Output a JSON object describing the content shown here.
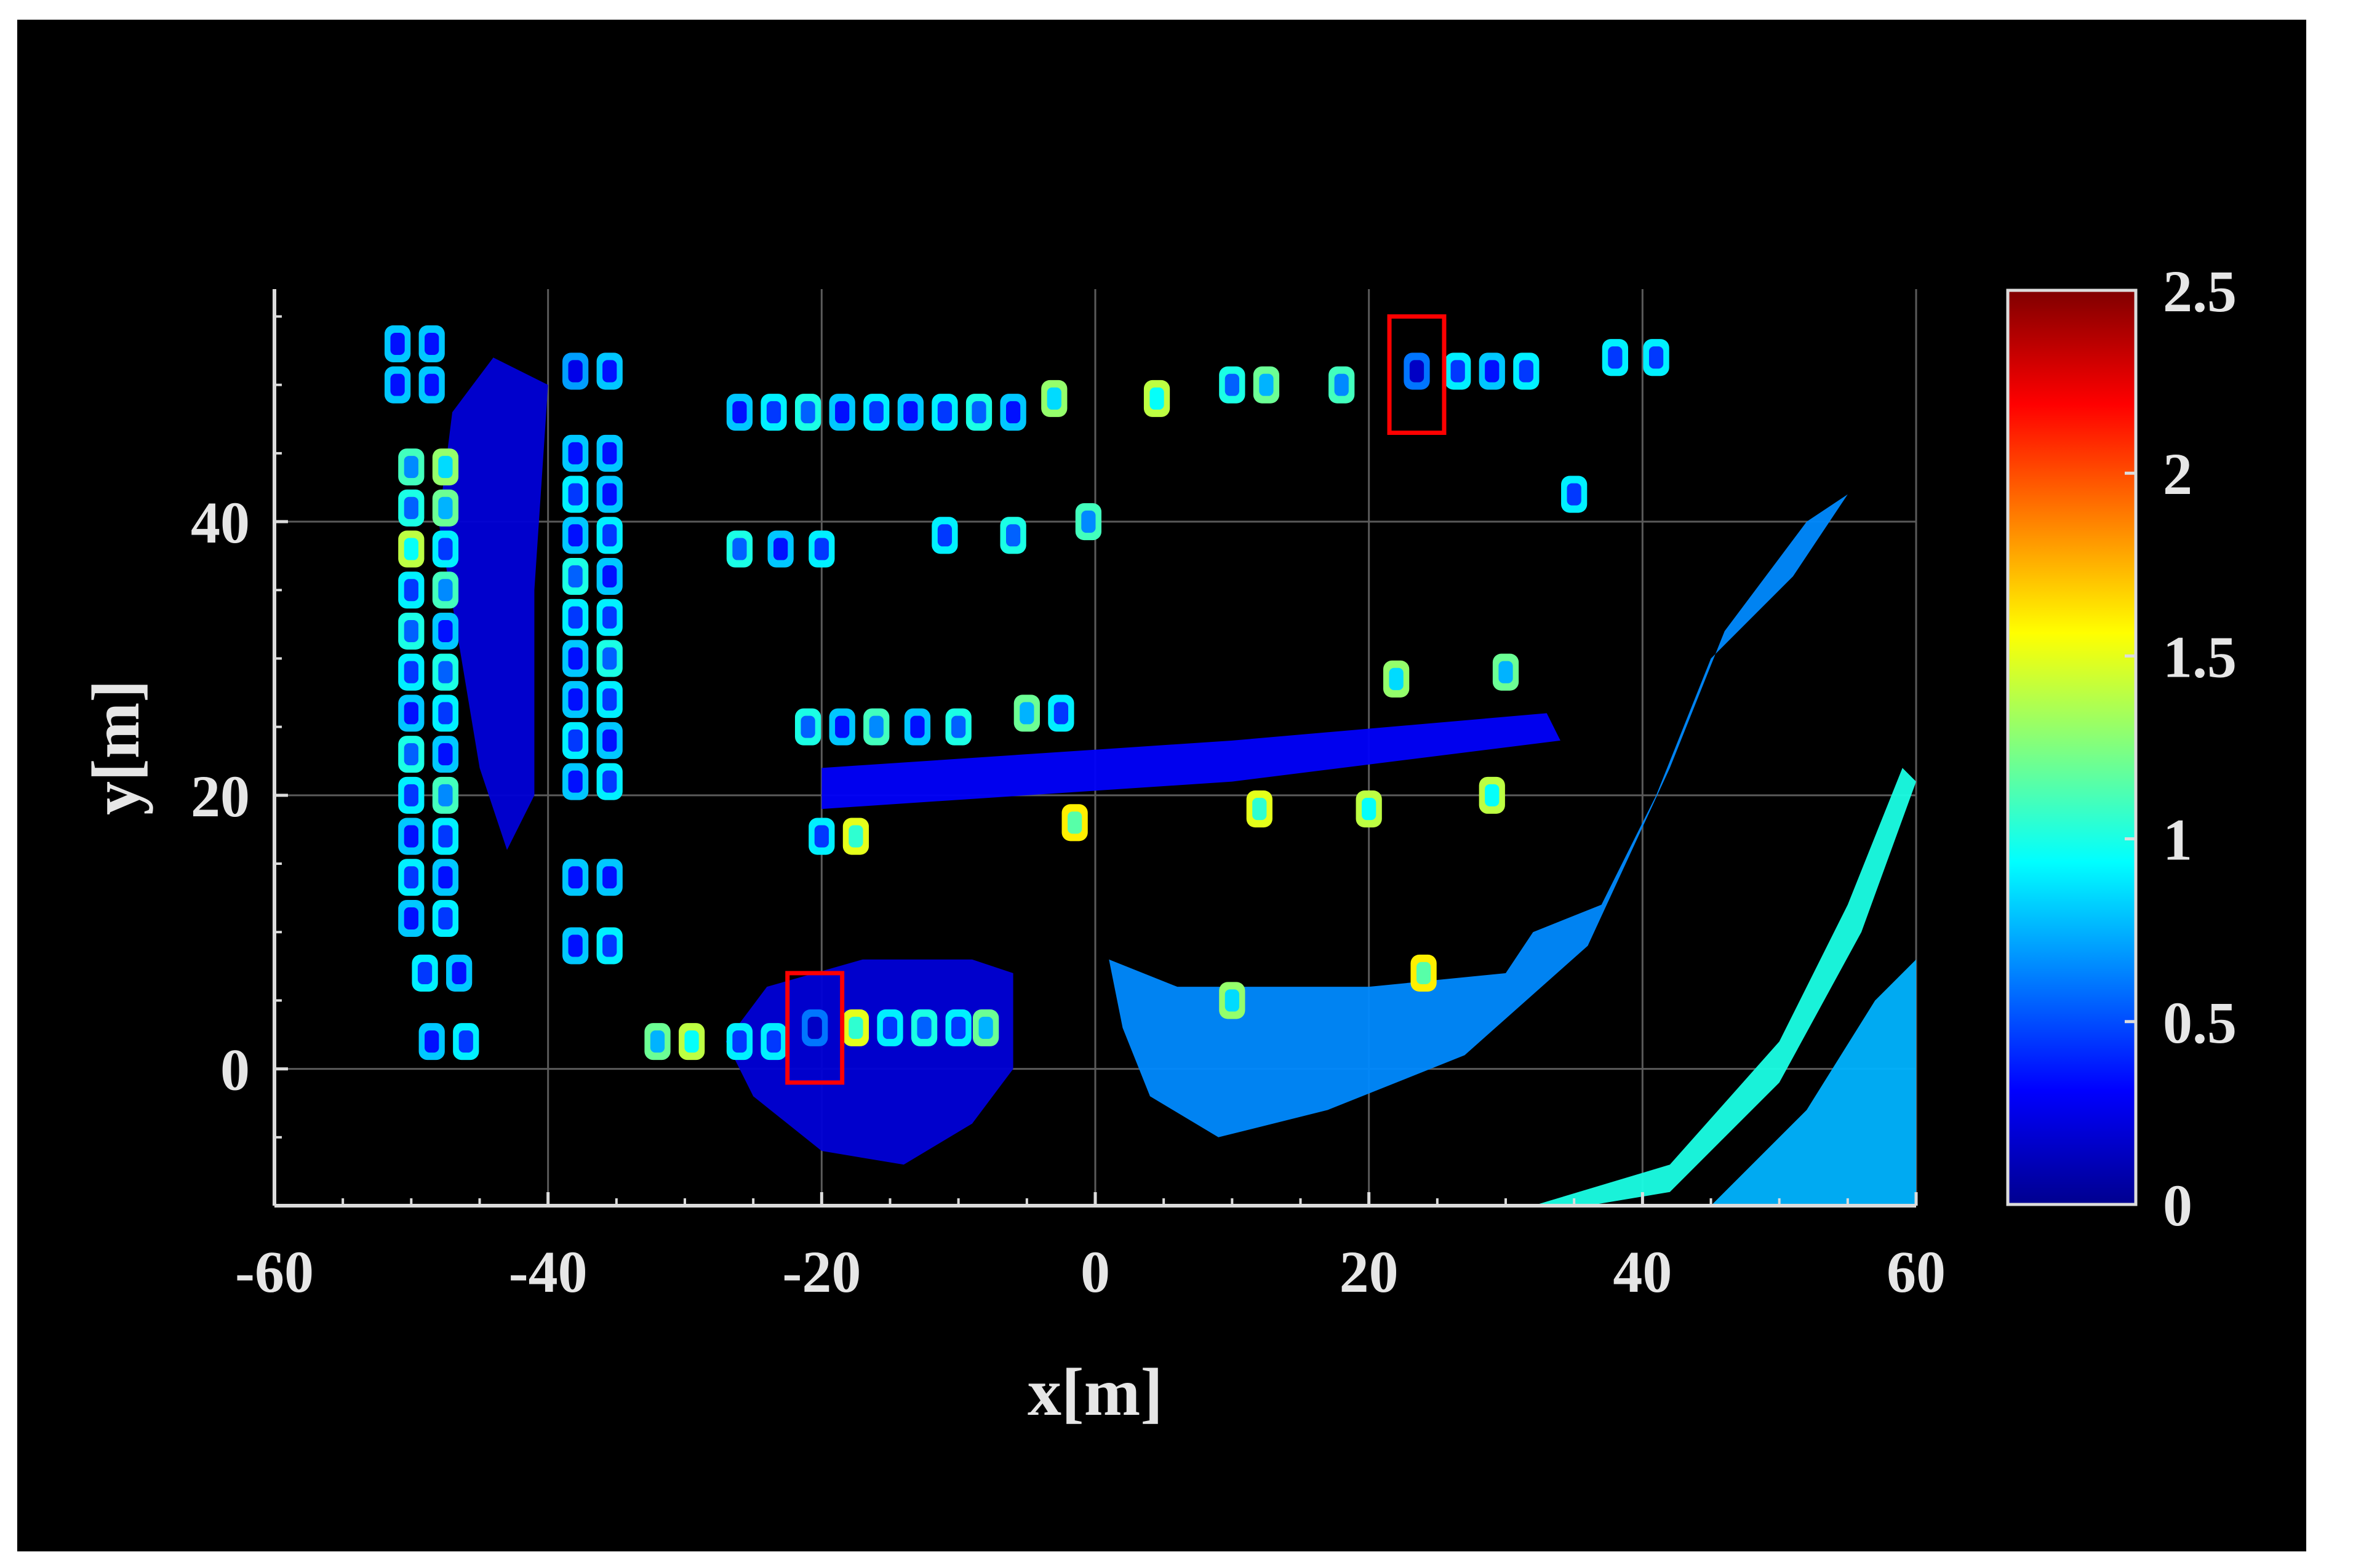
{
  "chart_data": {
    "type": "heatmap",
    "title": "",
    "xlabel": "x[m]",
    "ylabel": "y[m]",
    "xlim": [
      -60,
      60
    ],
    "ylim": [
      -10,
      57
    ],
    "x_ticks": [
      "-60",
      "-40",
      "-20",
      "0",
      "20",
      "40",
      "60"
    ],
    "x_tick_values": [
      -60,
      -40,
      -20,
      0,
      20,
      40,
      60
    ],
    "y_ticks": [
      "0",
      "20",
      "40"
    ],
    "y_tick_values": [
      0,
      20,
      40
    ],
    "grid": true,
    "colorbar": {
      "colormap": "jet",
      "range": [
        0,
        2.5
      ],
      "ticks": [
        "0",
        "0.5",
        "1",
        "1.5",
        "2",
        "2.5"
      ],
      "tick_values": [
        0,
        0.5,
        1,
        1.5,
        2,
        2.5
      ],
      "placement": "right"
    },
    "highlight_boxes": [
      {
        "x": [
          -22.5,
          -18.5
        ],
        "y": [
          -1,
          7
        ],
        "color": "#ff0000"
      },
      {
        "x": [
          21.5,
          25.5
        ],
        "y": [
          46.5,
          55
        ],
        "color": "#ff0000"
      }
    ],
    "regions": [
      {
        "kind": "ground",
        "polygon": [
          [
            -47,
            48
          ],
          [
            -44,
            52
          ],
          [
            -40,
            50
          ],
          [
            -41,
            35
          ],
          [
            -41,
            20
          ],
          [
            -43,
            16
          ],
          [
            -45,
            22
          ],
          [
            -48,
            40
          ]
        ],
        "value": 0.2
      },
      {
        "kind": "ground",
        "polygon": [
          [
            -20,
            22
          ],
          [
            10,
            24
          ],
          [
            33,
            26
          ],
          [
            34,
            24
          ],
          [
            10,
            21
          ],
          [
            -20,
            19
          ]
        ],
        "value": 0.3
      },
      {
        "kind": "ground",
        "polygon": [
          [
            -25,
            -2
          ],
          [
            -20,
            -6
          ],
          [
            -14,
            -7
          ],
          [
            -9,
            -4
          ],
          [
            -6,
            0
          ],
          [
            -6,
            7
          ],
          [
            -9,
            8
          ],
          [
            -17,
            8
          ],
          [
            -24,
            6
          ],
          [
            -27,
            2
          ]
        ],
        "value": 0.2
      },
      {
        "kind": "ground",
        "polygon": [
          [
            1,
            8
          ],
          [
            6,
            6
          ],
          [
            20,
            6
          ],
          [
            30,
            7
          ],
          [
            32,
            10
          ],
          [
            37,
            12
          ],
          [
            41,
            20
          ],
          [
            45,
            30
          ],
          [
            51,
            36
          ],
          [
            55,
            42
          ],
          [
            52,
            40
          ],
          [
            46,
            32
          ],
          [
            42,
            22
          ],
          [
            36,
            9
          ],
          [
            27,
            1
          ],
          [
            17,
            -3
          ],
          [
            9,
            -5
          ],
          [
            4,
            -2
          ],
          [
            2,
            3
          ]
        ],
        "value": 0.65
      },
      {
        "kind": "ground",
        "polygon": [
          [
            32,
            -10
          ],
          [
            42,
            -7
          ],
          [
            50,
            2
          ],
          [
            55,
            12
          ],
          [
            59,
            22
          ],
          [
            60,
            21
          ],
          [
            56,
            10
          ],
          [
            50,
            -1
          ],
          [
            42,
            -9
          ],
          [
            36,
            -10
          ]
        ],
        "value": 1.0
      },
      {
        "kind": "ground",
        "polygon": [
          [
            45,
            -10
          ],
          [
            52,
            -3
          ],
          [
            57,
            5
          ],
          [
            60,
            8
          ],
          [
            60,
            -10
          ]
        ],
        "value": 0.75
      }
    ],
    "objects": [
      {
        "x": -51,
        "y": 53,
        "value": 0.8
      },
      {
        "x": -48.5,
        "y": 53,
        "value": 0.8
      },
      {
        "x": -51,
        "y": 50,
        "value": 0.8
      },
      {
        "x": -48.5,
        "y": 50,
        "value": 0.8
      },
      {
        "x": -50,
        "y": 44,
        "value": 1.1
      },
      {
        "x": -47.5,
        "y": 44,
        "value": 1.3
      },
      {
        "x": -50,
        "y": 41,
        "value": 1.0
      },
      {
        "x": -47.5,
        "y": 41,
        "value": 1.2
      },
      {
        "x": -50,
        "y": 38,
        "value": 1.4
      },
      {
        "x": -47.5,
        "y": 38,
        "value": 0.9
      },
      {
        "x": -50,
        "y": 35,
        "value": 0.9
      },
      {
        "x": -47.5,
        "y": 35,
        "value": 1.1
      },
      {
        "x": -50,
        "y": 32,
        "value": 1.0
      },
      {
        "x": -47.5,
        "y": 32,
        "value": 0.8
      },
      {
        "x": -50,
        "y": 29,
        "value": 0.9
      },
      {
        "x": -47.5,
        "y": 29,
        "value": 1.0
      },
      {
        "x": -50,
        "y": 26,
        "value": 0.8
      },
      {
        "x": -47.5,
        "y": 26,
        "value": 0.9
      },
      {
        "x": -50,
        "y": 23,
        "value": 1.0
      },
      {
        "x": -47.5,
        "y": 23,
        "value": 0.8
      },
      {
        "x": -50,
        "y": 20,
        "value": 0.9
      },
      {
        "x": -47.5,
        "y": 20,
        "value": 1.1
      },
      {
        "x": -50,
        "y": 17,
        "value": 0.8
      },
      {
        "x": -47.5,
        "y": 17,
        "value": 0.9
      },
      {
        "x": -50,
        "y": 14,
        "value": 0.9
      },
      {
        "x": -47.5,
        "y": 14,
        "value": 0.8
      },
      {
        "x": -50,
        "y": 11,
        "value": 0.8
      },
      {
        "x": -47.5,
        "y": 11,
        "value": 0.9
      },
      {
        "x": -49,
        "y": 7,
        "value": 0.9
      },
      {
        "x": -46.5,
        "y": 7,
        "value": 0.8
      },
      {
        "x": -48.5,
        "y": 2,
        "value": 0.8
      },
      {
        "x": -46,
        "y": 2,
        "value": 0.9
      },
      {
        "x": -38,
        "y": 51,
        "value": 0.7
      },
      {
        "x": -35.5,
        "y": 51,
        "value": 0.8
      },
      {
        "x": -38,
        "y": 45,
        "value": 0.8
      },
      {
        "x": -35.5,
        "y": 45,
        "value": 0.8
      },
      {
        "x": -38,
        "y": 42,
        "value": 0.9
      },
      {
        "x": -35.5,
        "y": 42,
        "value": 0.8
      },
      {
        "x": -38,
        "y": 39,
        "value": 0.8
      },
      {
        "x": -35.5,
        "y": 39,
        "value": 0.9
      },
      {
        "x": -38,
        "y": 36,
        "value": 1.0
      },
      {
        "x": -35.5,
        "y": 36,
        "value": 0.8
      },
      {
        "x": -38,
        "y": 33,
        "value": 0.9
      },
      {
        "x": -35.5,
        "y": 33,
        "value": 0.9
      },
      {
        "x": -38,
        "y": 30,
        "value": 0.8
      },
      {
        "x": -35.5,
        "y": 30,
        "value": 1.0
      },
      {
        "x": -38,
        "y": 27,
        "value": 0.8
      },
      {
        "x": -35.5,
        "y": 27,
        "value": 0.9
      },
      {
        "x": -38,
        "y": 24,
        "value": 0.9
      },
      {
        "x": -35.5,
        "y": 24,
        "value": 0.8
      },
      {
        "x": -38,
        "y": 21,
        "value": 0.8
      },
      {
        "x": -35.5,
        "y": 21,
        "value": 0.9
      },
      {
        "x": -38,
        "y": 14,
        "value": 0.8
      },
      {
        "x": -35.5,
        "y": 14,
        "value": 0.8
      },
      {
        "x": -38,
        "y": 9,
        "value": 0.8
      },
      {
        "x": -35.5,
        "y": 9,
        "value": 0.9
      },
      {
        "x": -32,
        "y": 2,
        "value": 1.2
      },
      {
        "x": -29.5,
        "y": 2,
        "value": 1.4
      },
      {
        "x": -26,
        "y": 2,
        "value": 0.9
      },
      {
        "x": -23.5,
        "y": 2,
        "value": 0.9
      },
      {
        "x": -20.5,
        "y": 3,
        "value": 0.6
      },
      {
        "x": -17.5,
        "y": 3,
        "value": 1.5
      },
      {
        "x": -15,
        "y": 3,
        "value": 0.9
      },
      {
        "x": -12.5,
        "y": 3,
        "value": 1.0
      },
      {
        "x": -10,
        "y": 3,
        "value": 0.9
      },
      {
        "x": -8,
        "y": 3,
        "value": 1.2
      },
      {
        "x": -26,
        "y": 48,
        "value": 0.8
      },
      {
        "x": -23.5,
        "y": 48,
        "value": 0.9
      },
      {
        "x": -21,
        "y": 48,
        "value": 1.0
      },
      {
        "x": -18.5,
        "y": 48,
        "value": 0.8
      },
      {
        "x": -16,
        "y": 48,
        "value": 0.9
      },
      {
        "x": -13.5,
        "y": 48,
        "value": 0.8
      },
      {
        "x": -11,
        "y": 48,
        "value": 0.9
      },
      {
        "x": -8.5,
        "y": 48,
        "value": 1.0
      },
      {
        "x": -6,
        "y": 48,
        "value": 0.8
      },
      {
        "x": -3,
        "y": 49,
        "value": 1.3
      },
      {
        "x": 4.5,
        "y": 49,
        "value": 1.4
      },
      {
        "x": 10,
        "y": 50,
        "value": 1.0
      },
      {
        "x": 12.5,
        "y": 50,
        "value": 1.2
      },
      {
        "x": 18,
        "y": 50,
        "value": 1.1
      },
      {
        "x": 23.5,
        "y": 51,
        "value": 0.6
      },
      {
        "x": 26.5,
        "y": 51,
        "value": 0.9
      },
      {
        "x": 29,
        "y": 51,
        "value": 0.8
      },
      {
        "x": 31.5,
        "y": 51,
        "value": 0.9
      },
      {
        "x": 38,
        "y": 52,
        "value": 0.9
      },
      {
        "x": 41,
        "y": 52,
        "value": 0.9
      },
      {
        "x": 35,
        "y": 42,
        "value": 0.9
      },
      {
        "x": -26,
        "y": 38,
        "value": 1.0
      },
      {
        "x": -23,
        "y": 38,
        "value": 0.8
      },
      {
        "x": -20,
        "y": 38,
        "value": 0.9
      },
      {
        "x": -11,
        "y": 39,
        "value": 0.9
      },
      {
        "x": -6,
        "y": 39,
        "value": 1.0
      },
      {
        "x": -0.5,
        "y": 40,
        "value": 1.1
      },
      {
        "x": -21,
        "y": 25,
        "value": 1.0
      },
      {
        "x": -18.5,
        "y": 25,
        "value": 0.8
      },
      {
        "x": -16,
        "y": 25,
        "value": 1.1
      },
      {
        "x": -13,
        "y": 25,
        "value": 0.8
      },
      {
        "x": -10,
        "y": 25,
        "value": 1.0
      },
      {
        "x": -5,
        "y": 26,
        "value": 1.2
      },
      {
        "x": -2.5,
        "y": 26,
        "value": 0.9
      },
      {
        "x": 22,
        "y": 28.5,
        "value": 1.3
      },
      {
        "x": 30,
        "y": 29,
        "value": 1.2
      },
      {
        "x": -20,
        "y": 17,
        "value": 0.9
      },
      {
        "x": -17.5,
        "y": 17,
        "value": 1.5
      },
      {
        "x": -1.5,
        "y": 18,
        "value": 1.6
      },
      {
        "x": 12,
        "y": 19,
        "value": 1.5
      },
      {
        "x": 20,
        "y": 19,
        "value": 1.4
      },
      {
        "x": 29,
        "y": 20,
        "value": 1.4
      },
      {
        "x": 10,
        "y": 5,
        "value": 1.3
      },
      {
        "x": 24,
        "y": 7,
        "value": 1.6
      }
    ],
    "samples": [
      [
        -47,
        30,
        0.2
      ],
      [
        -44,
        45,
        0.25
      ],
      [
        -43,
        25,
        0.15
      ],
      [
        -15,
        -3,
        0.18
      ],
      [
        -10,
        0,
        0.2
      ],
      [
        20,
        2,
        0.65
      ],
      [
        30,
        12,
        0.7
      ],
      [
        42,
        28,
        0.75
      ],
      [
        50,
        8,
        0.95
      ],
      [
        55,
        -2,
        0.78
      ]
    ]
  }
}
